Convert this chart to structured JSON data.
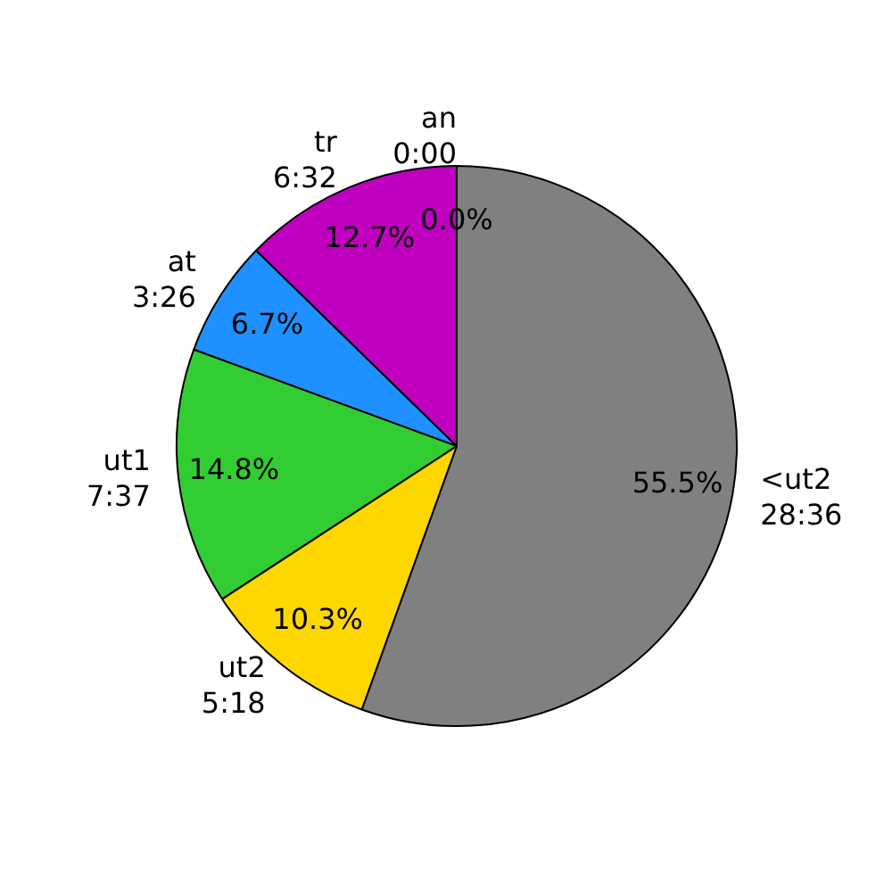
{
  "chart_data": {
    "type": "pie",
    "categories": [
      "<ut2\n28:36",
      "ut2\n5:18",
      "ut1\n7:37",
      "at\n3:26",
      "tr\n6:32",
      "an\n0:00"
    ],
    "values": [
      55.5,
      10.3,
      14.8,
      6.7,
      12.7,
      0.0
    ],
    "colors": [
      "#808080",
      "#ffd700",
      "#32cd32",
      "#1e90ff",
      "#bf00bf",
      "#ff0000"
    ],
    "value_labels": [
      "55.5%",
      "10.3%",
      "14.8%",
      "6.7%",
      "12.7%",
      "0.0%"
    ],
    "legend": false
  }
}
